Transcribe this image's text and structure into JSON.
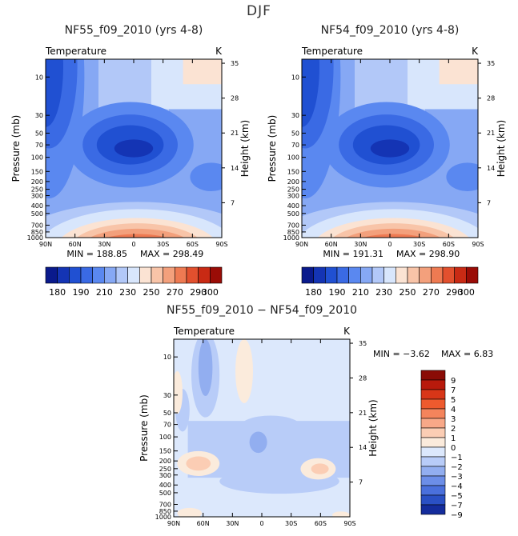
{
  "page_title": "DJF",
  "chart_data": [
    {
      "type": "contour",
      "title": "NF55_f09_2010 (yrs 4-8)",
      "variable": "Temperature",
      "units": "K",
      "xlabel": "",
      "ylabel": "Pressure (mb)",
      "ylabel_right": "Height (km)",
      "x_ticks": [
        "90N",
        "60N",
        "30N",
        "0",
        "30S",
        "60S",
        "90S"
      ],
      "y_ticks": [
        "10",
        "30",
        "50",
        "70",
        "100",
        "150",
        "200",
        "250",
        "300",
        "400",
        "500",
        "700",
        "850",
        "1000"
      ],
      "height_ticks": [
        "35",
        "28",
        "21",
        "14",
        "7"
      ],
      "min_label": "MIN = 188.85",
      "max_label": "MAX = 298.49",
      "colorbar": {
        "labels": [
          "180",
          "190",
          "210",
          "230",
          "250",
          "270",
          "290",
          "300"
        ]
      }
    },
    {
      "type": "contour",
      "title": "NF54_f09_2010 (yrs 4-8)",
      "variable": "Temperature",
      "units": "K",
      "xlabel": "",
      "ylabel": "Pressure (mb)",
      "ylabel_right": "Height (km)",
      "x_ticks": [
        "90N",
        "60N",
        "30N",
        "0",
        "30S",
        "60S",
        "90S"
      ],
      "y_ticks": [
        "10",
        "30",
        "50",
        "70",
        "100",
        "150",
        "200",
        "250",
        "300",
        "400",
        "500",
        "700",
        "850",
        "1000"
      ],
      "height_ticks": [
        "35",
        "28",
        "21",
        "14",
        "7"
      ],
      "min_label": "MIN = 191.31",
      "max_label": "MAX = 298.90",
      "colorbar": {
        "labels": [
          "180",
          "190",
          "210",
          "230",
          "250",
          "270",
          "290",
          "300"
        ]
      }
    },
    {
      "type": "contour",
      "title": "NF55_f09_2010 − NF54_f09_2010",
      "variable": "Temperature",
      "units": "K",
      "xlabel": "",
      "ylabel": "Pressure (mb)",
      "ylabel_right": "Height (km)",
      "x_ticks": [
        "90N",
        "60N",
        "30N",
        "0",
        "30S",
        "60S",
        "90S"
      ],
      "y_ticks": [
        "10",
        "30",
        "50",
        "70",
        "100",
        "150",
        "200",
        "250",
        "300",
        "400",
        "500",
        "700",
        "850",
        "1000"
      ],
      "height_ticks": [
        "35",
        "28",
        "21",
        "14",
        "7"
      ],
      "min_label": "MIN =   −3.62",
      "max_label": "MAX =    6.83",
      "colorbar": {
        "labels": [
          "9",
          "7",
          "5",
          "4",
          "3",
          "2",
          "1",
          "0",
          "−1",
          "−2",
          "−3",
          "−4",
          "−5",
          "−7",
          "−9"
        ]
      }
    }
  ],
  "colors": {
    "temp_scale": [
      "#0a1a8c",
      "#1434b4",
      "#2050d2",
      "#3a6ae4",
      "#5a88f0",
      "#86a8f4",
      "#b2c8f8",
      "#d8e6fc",
      "#fbe3d3",
      "#f8c4a8",
      "#f3a07c",
      "#ee7a52",
      "#e2502e",
      "#c92a14",
      "#9a0c06"
    ],
    "diff_scale": [
      "#8a0c06",
      "#b81a0c",
      "#d83618",
      "#ee5a2e",
      "#f4845c",
      "#f8a888",
      "#fbcdb4",
      "#fbebdc",
      "#dce8fc",
      "#b8ccf8",
      "#92aef0",
      "#6c8ee8",
      "#4a70dc",
      "#2a50c4",
      "#142c9c"
    ]
  }
}
